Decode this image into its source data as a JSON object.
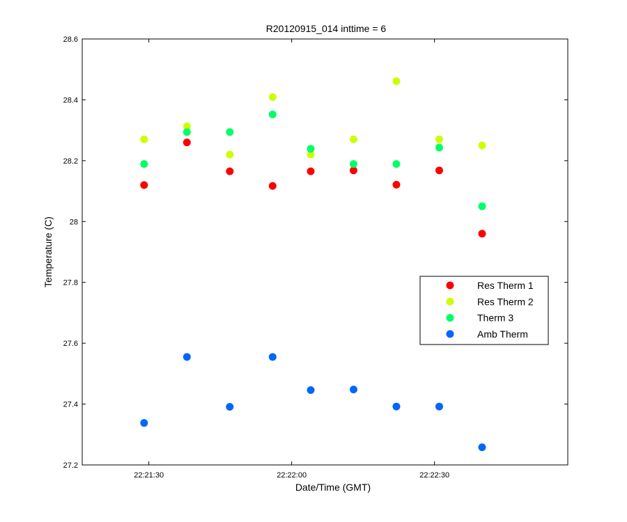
{
  "chart_data": {
    "type": "scatter",
    "title": "R20120915_014 inttime = 6",
    "xlabel": "Date/Time (GMT)",
    "ylabel": "Temperature (C)",
    "x_unit": "time",
    "xlim": [
      "22:21:16",
      "22:22:58"
    ],
    "ylim": [
      27.2,
      28.6
    ],
    "x_ticks": [
      "22:21:30",
      "22:22:00",
      "22:22:30"
    ],
    "y_ticks": [
      27.2,
      27.4,
      27.6,
      27.8,
      28,
      28.2,
      28.4,
      28.6
    ],
    "y_tick_labels": [
      "27.2",
      "27.4",
      "27.6",
      "27.8",
      "28",
      "28.2",
      "28.4",
      "28.6"
    ],
    "grid": false,
    "legend_position": "right",
    "x": [
      "22:21:29",
      "22:21:38",
      "22:21:47",
      "22:21:56",
      "22:22:04",
      "22:22:13",
      "22:22:22",
      "22:22:31",
      "22:22:40"
    ],
    "series": [
      {
        "name": "Res Therm 1",
        "color": "#ff0000",
        "values": [
          28.12,
          28.26,
          28.165,
          28.117,
          28.165,
          28.168,
          28.121,
          28.168,
          27.96
        ]
      },
      {
        "name": "Res Therm 2",
        "color": "#ccff00",
        "values": [
          28.27,
          28.313,
          28.22,
          28.409,
          28.22,
          28.27,
          28.461,
          28.27,
          28.25
        ]
      },
      {
        "name": "Therm 3",
        "color": "#00ff66",
        "values": [
          28.189,
          28.294,
          28.294,
          28.352,
          28.239,
          28.189,
          28.189,
          28.243,
          28.05
        ]
      },
      {
        "name": "Amb Therm",
        "color": "#0066ff",
        "values": [
          27.338,
          27.555,
          27.391,
          27.555,
          27.446,
          27.448,
          27.392,
          27.392,
          27.258
        ]
      }
    ]
  }
}
